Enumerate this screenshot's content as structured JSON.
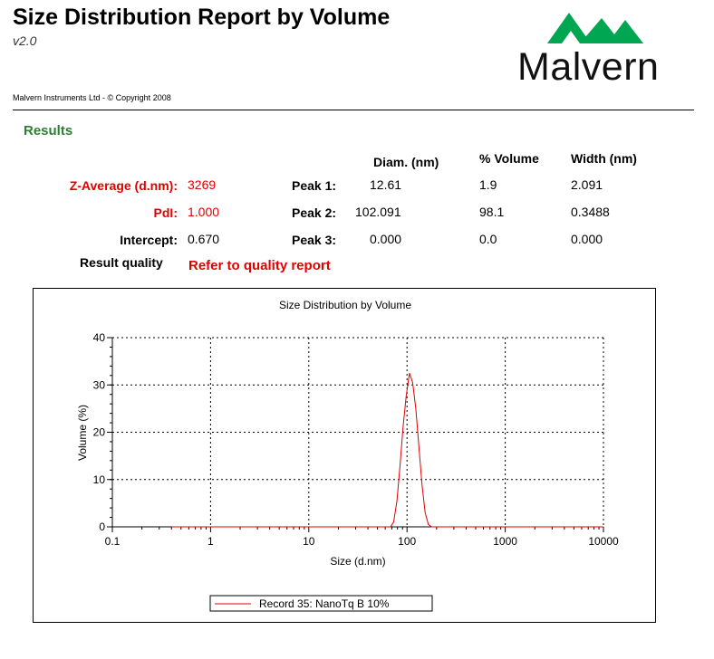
{
  "report": {
    "title": "Size Distribution Report by Volume",
    "version": "v2.0",
    "copyright": "Malvern Instruments Ltd  - © Copyright 2008",
    "logo_text": "Malvern",
    "brand_color": "#00a651"
  },
  "results": {
    "heading": "Results",
    "col_diam": "Diam. (nm)",
    "col_volume": "% Volume",
    "col_width": "Width (nm)",
    "zavg_label": "Z-Average (d.nm):",
    "zavg_value": "3269",
    "pdi_label": "PdI:",
    "pdi_value": "1.000",
    "intercept_label": "Intercept:",
    "intercept_value": "0.670",
    "quality_label": "Result quality",
    "quality_value": "Refer to quality report",
    "peaks": [
      {
        "label": "Peak 1:",
        "diam": "12.61",
        "volume": "1.9",
        "width": "2.091"
      },
      {
        "label": "Peak 2:",
        "diam": "102.091",
        "volume": "98.1",
        "width": "0.3488"
      },
      {
        "label": "Peak 3:",
        "diam": "0.000",
        "volume": "0.0",
        "width": "0.000"
      }
    ]
  },
  "chart_data": {
    "type": "line",
    "title": "Size Distribution by Volume",
    "xlabel": "Size (d.nm)",
    "ylabel": "Volume (%)",
    "xscale": "log",
    "xlim": [
      0.1,
      10000
    ],
    "ylim": [
      0,
      40
    ],
    "xticks": [
      "0.1",
      "1",
      "10",
      "100",
      "1000",
      "10000"
    ],
    "yticks": [
      "0",
      "10",
      "20",
      "30",
      "40"
    ],
    "grid": true,
    "legend_position": "bottom-center",
    "series": [
      {
        "name": "Record 35: NanoTq B 10%",
        "color": "#e00000",
        "x": [
          0.4,
          10,
          50,
          68,
          73,
          79,
          85,
          91,
          98,
          106,
          114,
          123,
          132,
          142,
          153,
          165,
          178,
          192,
          300,
          1000,
          10000
        ],
        "y": [
          0,
          0,
          0,
          0,
          1.0,
          5.5,
          13.0,
          21.0,
          27.5,
          32.5,
          30.5,
          25.0,
          17.0,
          9.0,
          3.0,
          0.5,
          0,
          0,
          0,
          0,
          0
        ]
      }
    ]
  }
}
